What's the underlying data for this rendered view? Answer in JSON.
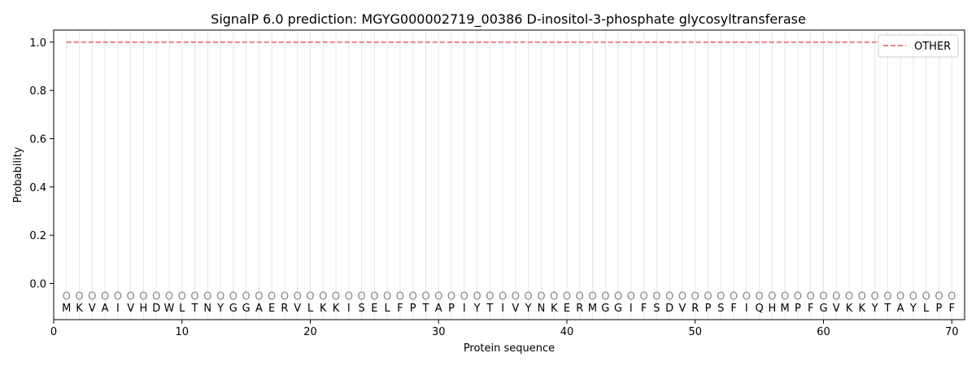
{
  "chart_data": {
    "type": "line",
    "title": "SignalP 6.0 prediction: MGYG000002719_00386 D-inositol-3-phosphate glycosyltransferase",
    "xlabel": "Protein sequence",
    "ylabel": "Probability",
    "xlim": [
      0,
      71
    ],
    "ylim": [
      -0.15,
      1.05
    ],
    "x_ticks": [
      "0",
      "10",
      "20",
      "30",
      "40",
      "50",
      "60",
      "70"
    ],
    "y_ticks": [
      "0.0",
      "0.2",
      "0.4",
      "0.6",
      "0.8",
      "1.0"
    ],
    "residues": [
      "M",
      "K",
      "V",
      "A",
      "I",
      "V",
      "H",
      "D",
      "W",
      "L",
      "T",
      "N",
      "Y",
      "G",
      "G",
      "A",
      "E",
      "R",
      "V",
      "L",
      "K",
      "K",
      "I",
      "S",
      "E",
      "L",
      "F",
      "P",
      "T",
      "A",
      "P",
      "I",
      "Y",
      "T",
      "I",
      "V",
      "Y",
      "N",
      "K",
      "E",
      "R",
      "M",
      "G",
      "G",
      "I",
      "F",
      "S",
      "D",
      "V",
      "R",
      "P",
      "S",
      "F",
      "I",
      "Q",
      "H",
      "M",
      "P",
      "F",
      "G",
      "V",
      "K",
      "K",
      "Y",
      "T",
      "A",
      "Y",
      "L",
      "P",
      "F"
    ],
    "region_label": "O",
    "series": [
      {
        "name": "OTHER",
        "x_start": 1,
        "x_end": 70,
        "value": 1.0,
        "color": "#f08080",
        "style": "dashed"
      }
    ],
    "legend_position": "upper right",
    "grid": "vertical per residue"
  }
}
